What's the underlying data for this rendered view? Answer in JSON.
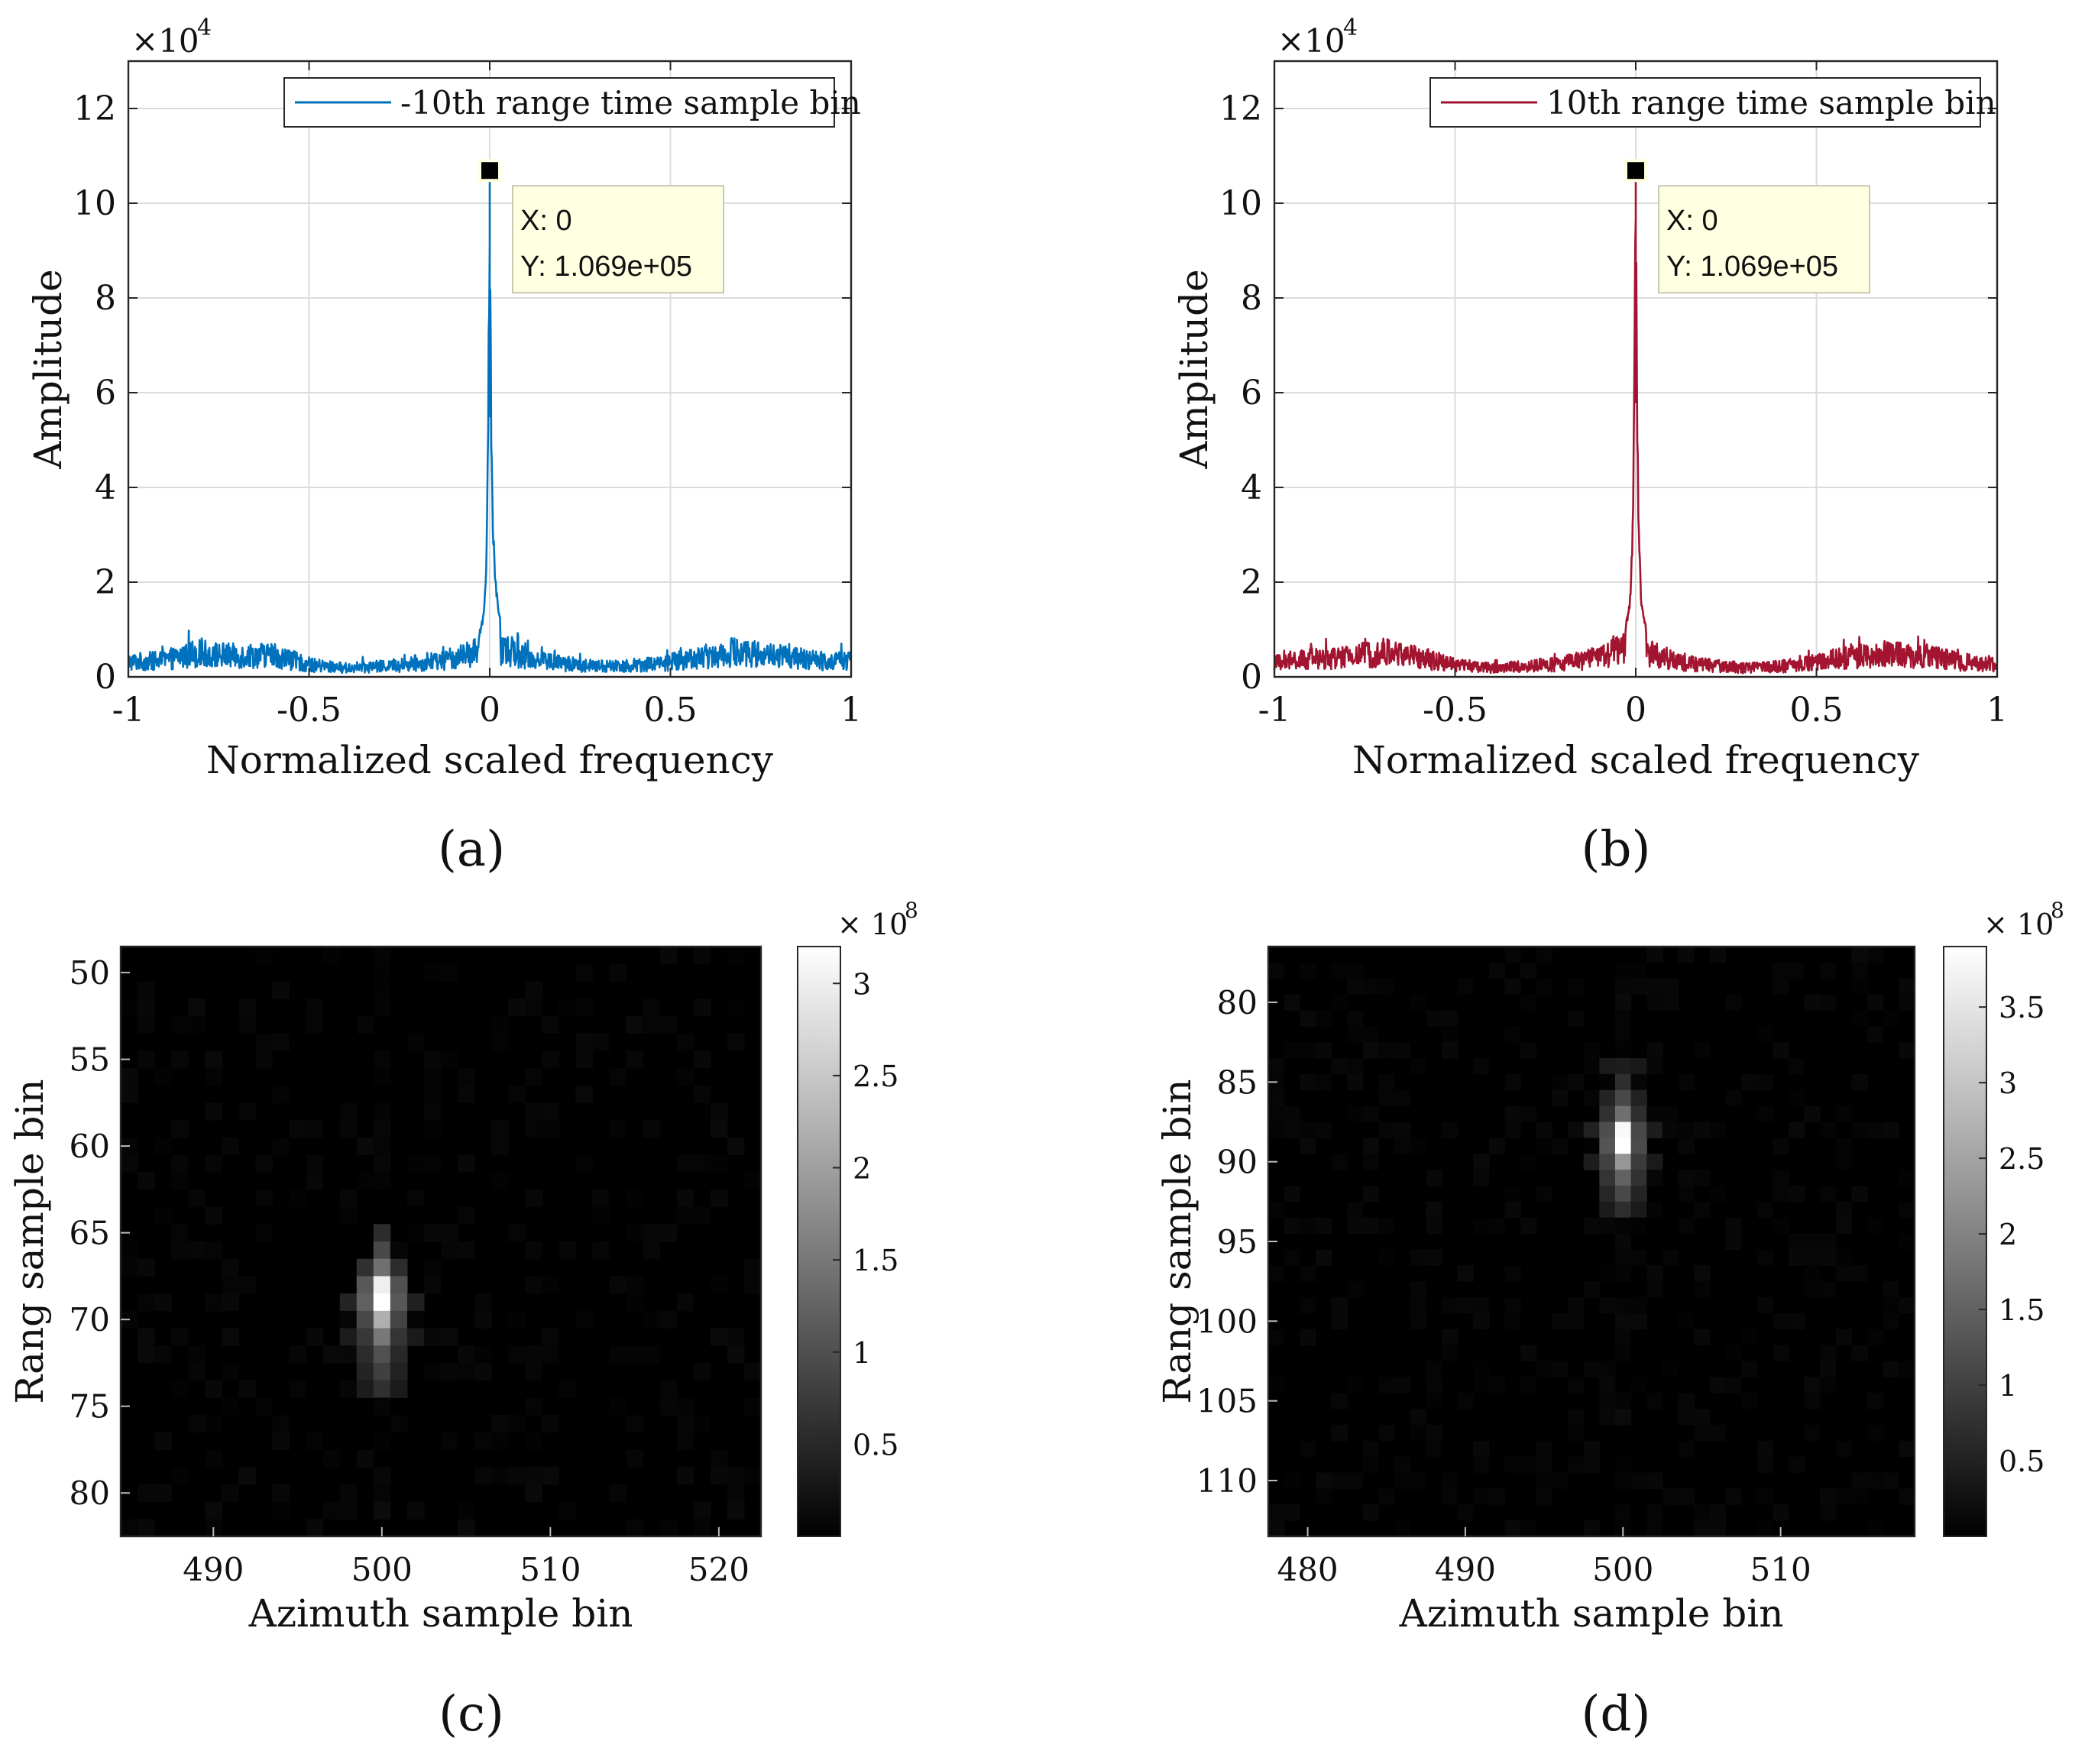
{
  "figure": {
    "panels": [
      "(a)",
      "(b)",
      "(c)",
      "(d)"
    ]
  },
  "colors": {
    "series_a": "#0072BD",
    "series_b": "#A2142F",
    "grid": "#DCDCDC",
    "datatip_bg": "#FFFFE1",
    "datatip_border": "#C8C8B4"
  },
  "chart_data": [
    {
      "panel": "a",
      "type": "line",
      "title": "",
      "xlabel": "Normalized scaled frequency",
      "ylabel": "Amplitude",
      "xlim": [
        -1,
        1
      ],
      "ylim": [
        0,
        130000
      ],
      "xticks": [
        -1,
        -0.5,
        0,
        0.5,
        1
      ],
      "xtick_labels": [
        "-1",
        "-0.5",
        "0",
        "0.5",
        "1"
      ],
      "yticks": [
        0,
        20000,
        40000,
        60000,
        80000,
        100000,
        120000
      ],
      "ytick_labels": [
        "0",
        "2",
        "4",
        "6",
        "8",
        "10",
        "12"
      ],
      "y_exponent_label": "×10",
      "y_exponent": "4",
      "grid": true,
      "legend": {
        "entries": [
          "-10th range time sample bin"
        ],
        "placement": "top-right"
      },
      "series": [
        {
          "name": "-10th range time sample bin",
          "color": "#0072BD",
          "peak_x": 0,
          "peak_y": 106900,
          "baseline_mean": 4500,
          "noise_envelope": [
            [
              -1,
              5000
            ],
            [
              -0.9,
              5500
            ],
            [
              -0.82,
              8000
            ],
            [
              -0.7,
              7000
            ],
            [
              -0.6,
              7500
            ],
            [
              -0.5,
              4000
            ],
            [
              -0.4,
              3000
            ],
            [
              -0.3,
              3500
            ],
            [
              -0.2,
              4500
            ],
            [
              -0.1,
              6000
            ],
            [
              -0.05,
              8000
            ],
            [
              0.05,
              9000
            ],
            [
              0.1,
              6500
            ],
            [
              0.2,
              4500
            ],
            [
              0.3,
              3500
            ],
            [
              0.4,
              4000
            ],
            [
              0.5,
              5000
            ],
            [
              0.6,
              7000
            ],
            [
              0.68,
              8500
            ],
            [
              0.8,
              7000
            ],
            [
              0.9,
              5500
            ],
            [
              1,
              5500
            ]
          ],
          "peak_shape": [
            [
              -0.03,
              9000
            ],
            [
              -0.015,
              15000
            ],
            [
              -0.008,
              30000
            ],
            [
              -0.004,
              60000
            ],
            [
              0,
              106900
            ],
            [
              0.004,
              55000
            ],
            [
              0.008,
              35000
            ],
            [
              0.015,
              22000
            ],
            [
              0.03,
              12000
            ]
          ]
        }
      ],
      "annotations": [
        {
          "type": "datatip",
          "x": 0,
          "y": 106900,
          "text_x": "X: 0",
          "text_y": "Y: 1.069e+05"
        }
      ]
    },
    {
      "panel": "b",
      "type": "line",
      "title": "",
      "xlabel": "Normalized scaled frequency",
      "ylabel": "Amplitude",
      "xlim": [
        -1,
        1
      ],
      "ylim": [
        0,
        130000
      ],
      "xticks": [
        -1,
        -0.5,
        0,
        0.5,
        1
      ],
      "xtick_labels": [
        "-1",
        "-0.5",
        "0",
        "0.5",
        "1"
      ],
      "yticks": [
        0,
        20000,
        40000,
        60000,
        80000,
        100000,
        120000
      ],
      "ytick_labels": [
        "0",
        "2",
        "4",
        "6",
        "8",
        "10",
        "12"
      ],
      "y_exponent_label": "×10",
      "y_exponent": "4",
      "grid": true,
      "legend": {
        "entries": [
          "10th range time sample bin"
        ],
        "placement": "top-right"
      },
      "series": [
        {
          "name": "10th range time sample bin",
          "color": "#A2142F",
          "peak_x": 0,
          "peak_y": 106900,
          "baseline_mean": 4500,
          "noise_envelope": [
            [
              -1,
              4500
            ],
            [
              -0.9,
              6000
            ],
            [
              -0.8,
              6500
            ],
            [
              -0.7,
              8500
            ],
            [
              -0.6,
              6500
            ],
            [
              -0.5,
              4000
            ],
            [
              -0.4,
              3000
            ],
            [
              -0.3,
              3500
            ],
            [
              -0.2,
              4500
            ],
            [
              -0.1,
              6500
            ],
            [
              -0.05,
              9500
            ],
            [
              0.05,
              8000
            ],
            [
              0.1,
              5500
            ],
            [
              0.2,
              4000
            ],
            [
              0.3,
              3000
            ],
            [
              0.4,
              3500
            ],
            [
              0.5,
              5000
            ],
            [
              0.6,
              7000
            ],
            [
              0.7,
              7500
            ],
            [
              0.8,
              7000
            ],
            [
              0.9,
              5000
            ],
            [
              1,
              4500
            ]
          ],
          "peak_shape": [
            [
              -0.03,
              10000
            ],
            [
              -0.015,
              18000
            ],
            [
              -0.008,
              34000
            ],
            [
              -0.004,
              65000
            ],
            [
              0,
              106900
            ],
            [
              0.004,
              58000
            ],
            [
              0.008,
              32000
            ],
            [
              0.015,
              18000
            ],
            [
              0.03,
              10000
            ]
          ]
        }
      ],
      "annotations": [
        {
          "type": "datatip",
          "x": 0,
          "y": 106900,
          "text_x": "X: 0",
          "text_y": "Y: 1.069e+05"
        }
      ]
    },
    {
      "panel": "c",
      "type": "heatmap",
      "title": "",
      "xlabel": "Azimuth sample bin",
      "ylabel": "Rang sample bin",
      "xlim": [
        484.5,
        522.5
      ],
      "ylim": [
        48.5,
        82.5
      ],
      "y_reversed": true,
      "xticks": [
        490,
        500,
        510,
        520
      ],
      "xtick_labels": [
        "490",
        "500",
        "510",
        "520"
      ],
      "yticks": [
        50,
        55,
        60,
        65,
        70,
        75,
        80
      ],
      "ytick_labels": [
        "50",
        "55",
        "60",
        "65",
        "70",
        "75",
        "80"
      ],
      "colormap": "gray",
      "clim": [
        0,
        320000000
      ],
      "colorbar": {
        "ticks": [
          50000000,
          100000000,
          150000000,
          200000000,
          250000000,
          300000000
        ],
        "tick_labels": [
          "0.5",
          "1",
          "1.5",
          "2",
          "2.5",
          "3"
        ],
        "exponent_label": "× 10",
        "exponent": "8"
      },
      "peak": {
        "x": 500,
        "y": 69,
        "value": 320000000
      },
      "bright_cells": [
        {
          "x": 500,
          "y": 68,
          "value": 300000000
        },
        {
          "x": 500,
          "y": 69,
          "value": 320000000
        },
        {
          "x": 500,
          "y": 70,
          "value": 220000000
        },
        {
          "x": 500,
          "y": 71,
          "value": 150000000
        },
        {
          "x": 500,
          "y": 67,
          "value": 140000000
        },
        {
          "x": 499,
          "y": 68,
          "value": 110000000
        },
        {
          "x": 501,
          "y": 68,
          "value": 100000000
        },
        {
          "x": 499,
          "y": 69,
          "value": 120000000
        },
        {
          "x": 501,
          "y": 69,
          "value": 110000000
        },
        {
          "x": 499,
          "y": 70,
          "value": 90000000
        },
        {
          "x": 501,
          "y": 70,
          "value": 85000000
        },
        {
          "x": 500,
          "y": 72,
          "value": 100000000
        },
        {
          "x": 500,
          "y": 73,
          "value": 80000000
        },
        {
          "x": 500,
          "y": 74,
          "value": 60000000
        },
        {
          "x": 500,
          "y": 66,
          "value": 90000000
        },
        {
          "x": 500,
          "y": 65,
          "value": 55000000
        },
        {
          "x": 499,
          "y": 71,
          "value": 70000000
        },
        {
          "x": 501,
          "y": 71,
          "value": 65000000
        },
        {
          "x": 499,
          "y": 72,
          "value": 55000000
        },
        {
          "x": 501,
          "y": 72,
          "value": 50000000
        },
        {
          "x": 499,
          "y": 67,
          "value": 60000000
        },
        {
          "x": 501,
          "y": 67,
          "value": 55000000
        },
        {
          "x": 499,
          "y": 73,
          "value": 45000000
        },
        {
          "x": 501,
          "y": 73,
          "value": 42000000
        },
        {
          "x": 498,
          "y": 69,
          "value": 45000000
        },
        {
          "x": 502,
          "y": 69,
          "value": 40000000
        },
        {
          "x": 498,
          "y": 71,
          "value": 35000000
        },
        {
          "x": 502,
          "y": 71,
          "value": 33000000
        },
        {
          "x": 499,
          "y": 74,
          "value": 35000000
        },
        {
          "x": 501,
          "y": 74,
          "value": 33000000
        }
      ]
    },
    {
      "panel": "d",
      "type": "heatmap",
      "title": "",
      "xlabel": "Azimuth sample bin",
      "ylabel": "Rang sample bin",
      "xlim": [
        477.5,
        518.5
      ],
      "ylim": [
        76.5,
        113.5
      ],
      "y_reversed": true,
      "xticks": [
        480,
        490,
        500,
        510
      ],
      "xtick_labels": [
        "480",
        "490",
        "500",
        "510"
      ],
      "yticks": [
        80,
        85,
        90,
        95,
        100,
        105,
        110
      ],
      "ytick_labels": [
        "80",
        "85",
        "90",
        "95",
        "100",
        "105",
        "110"
      ],
      "colormap": "gray",
      "clim": [
        0,
        390000000
      ],
      "colorbar": {
        "ticks": [
          50000000,
          100000000,
          150000000,
          200000000,
          250000000,
          300000000,
          350000000
        ],
        "tick_labels": [
          "0.5",
          "1",
          "1.5",
          "2",
          "2.5",
          "3",
          "3.5"
        ],
        "exponent_label": "× 10",
        "exponent": "8"
      },
      "peak": {
        "x": 500,
        "y": 89,
        "value": 390000000
      },
      "bright_cells": [
        {
          "x": 500,
          "y": 88,
          "value": 380000000
        },
        {
          "x": 500,
          "y": 89,
          "value": 390000000
        },
        {
          "x": 500,
          "y": 90,
          "value": 230000000
        },
        {
          "x": 500,
          "y": 87,
          "value": 170000000
        },
        {
          "x": 500,
          "y": 91,
          "value": 150000000
        },
        {
          "x": 499,
          "y": 88,
          "value": 120000000
        },
        {
          "x": 501,
          "y": 88,
          "value": 110000000
        },
        {
          "x": 499,
          "y": 89,
          "value": 130000000
        },
        {
          "x": 501,
          "y": 89,
          "value": 115000000
        },
        {
          "x": 499,
          "y": 90,
          "value": 100000000
        },
        {
          "x": 501,
          "y": 90,
          "value": 90000000
        },
        {
          "x": 500,
          "y": 86,
          "value": 110000000
        },
        {
          "x": 500,
          "y": 92,
          "value": 110000000
        },
        {
          "x": 500,
          "y": 85,
          "value": 70000000
        },
        {
          "x": 500,
          "y": 93,
          "value": 70000000
        },
        {
          "x": 499,
          "y": 87,
          "value": 75000000
        },
        {
          "x": 501,
          "y": 87,
          "value": 70000000
        },
        {
          "x": 499,
          "y": 91,
          "value": 80000000
        },
        {
          "x": 501,
          "y": 91,
          "value": 75000000
        },
        {
          "x": 499,
          "y": 92,
          "value": 60000000
        },
        {
          "x": 501,
          "y": 92,
          "value": 55000000
        },
        {
          "x": 499,
          "y": 86,
          "value": 55000000
        },
        {
          "x": 501,
          "y": 86,
          "value": 50000000
        },
        {
          "x": 498,
          "y": 88,
          "value": 50000000
        },
        {
          "x": 502,
          "y": 88,
          "value": 45000000
        },
        {
          "x": 498,
          "y": 90,
          "value": 45000000
        },
        {
          "x": 502,
          "y": 90,
          "value": 40000000
        },
        {
          "x": 499,
          "y": 84,
          "value": 40000000
        },
        {
          "x": 500,
          "y": 84,
          "value": 45000000
        },
        {
          "x": 501,
          "y": 84,
          "value": 38000000
        },
        {
          "x": 499,
          "y": 93,
          "value": 42000000
        },
        {
          "x": 501,
          "y": 93,
          "value": 40000000
        }
      ]
    }
  ]
}
